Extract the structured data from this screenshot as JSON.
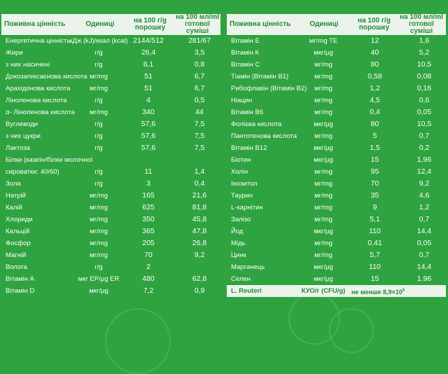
{
  "left": {
    "headers": {
      "name": "Поживна цінність",
      "unit": "Одиниці",
      "per100g": "на 100 г/g\nпорошку",
      "per100ml": "на 100 мл/ml\nготової суміші"
    },
    "rows": [
      {
        "name": "Енергетична цінність",
        "unit": "кДж (kJ)/ккал (kcal)",
        "v1": "2144/512",
        "v2": "281/67"
      },
      {
        "name": "Жири",
        "unit": "г/g",
        "v1": "26,4",
        "v2": "3,5"
      },
      {
        "name": "з них насичені",
        "unit": "г/g",
        "v1": "6,1",
        "v2": "0,8"
      },
      {
        "name": "Докозагексаєнова кислота",
        "unit": "мг/mg",
        "v1": "51",
        "v2": "6,7"
      },
      {
        "name": "Арахідонова кислота",
        "unit": "мг/mg",
        "v1": "51",
        "v2": "6,7"
      },
      {
        "name": "Ліноленова кислота",
        "unit": "г/g",
        "v1": "4",
        "v2": "0,5"
      },
      {
        "name": "α- Ліноленова кислота",
        "unit": "мг/mg",
        "v1": "340",
        "v2": "44"
      },
      {
        "name": "Вуглеводи",
        "unit": "г/g",
        "v1": "57,6",
        "v2": "7,5"
      },
      {
        "name": "з них цукри",
        "unit": "г/g",
        "v1": "57,6",
        "v2": "7,5"
      },
      {
        "name": "Лактоза",
        "unit": "г/g",
        "v1": "57,6",
        "v2": "7,5"
      },
      {
        "name": "Білки (казеїн/білки молочної",
        "unit": "",
        "v1": "",
        "v2": ""
      },
      {
        "name": "сироватки: 40/60)",
        "unit": "г/g",
        "v1": "11",
        "v2": "1,4"
      },
      {
        "name": "Зола",
        "unit": "г/g",
        "v1": "3",
        "v2": "0,4"
      },
      {
        "name": "Натрій",
        "unit": "мг/mg",
        "v1": "165",
        "v2": "21,6"
      },
      {
        "name": "Калій",
        "unit": "мг/mg",
        "v1": "625",
        "v2": "81,8"
      },
      {
        "name": "Хлориди",
        "unit": "мг/mg",
        "v1": "350",
        "v2": "45,8"
      },
      {
        "name": "Кальцій",
        "unit": "мг/mg",
        "v1": "365",
        "v2": "47,8"
      },
      {
        "name": "Фосфор",
        "unit": "мг/mg",
        "v1": "205",
        "v2": "26,8"
      },
      {
        "name": "Магній",
        "unit": "мг/mg",
        "v1": "70",
        "v2": "9,2"
      },
      {
        "name": "Волога",
        "unit": "г/g",
        "v1": "2",
        "v2": ""
      },
      {
        "name": "Вітамін А",
        "unit": "мкг ЕР/µg ER",
        "v1": "480",
        "v2": "62,8"
      },
      {
        "name": "Вітамін D",
        "unit": "мкг/µg",
        "v1": "7,2",
        "v2": "0,9"
      }
    ]
  },
  "right": {
    "headers": {
      "name": "Поживна цінність",
      "unit": "Одиниці",
      "per100g": "на 100 г/g\nпорошку",
      "per100ml": "на 100 мл/ml\nготової суміші"
    },
    "rows": [
      {
        "name": "Вітамін Е",
        "unit": "мг/mg TE",
        "v1": "12",
        "v2": "1,6"
      },
      {
        "name": "Вітамін К",
        "unit": "мкг/µg",
        "v1": "40",
        "v2": "5,2"
      },
      {
        "name": "Вітамін С",
        "unit": "мг/mg",
        "v1": "80",
        "v2": "10,5"
      },
      {
        "name": "Тіамін (Вітамін В1)",
        "unit": "мг/mg",
        "v1": "0,58",
        "v2": "0,08"
      },
      {
        "name": "Рибофлавін (Вітамін В2)",
        "unit": "мг/mg",
        "v1": "1,2",
        "v2": "0,16"
      },
      {
        "name": "Ніацин",
        "unit": "мг/mg",
        "v1": "4,5",
        "v2": "0,6"
      },
      {
        "name": "Вітамін В6",
        "unit": "мг/mg",
        "v1": "0,4",
        "v2": "0,05"
      },
      {
        "name": "Фолієва кислота",
        "unit": "мкг/µg",
        "v1": "80",
        "v2": "10,5"
      },
      {
        "name": "Пантотенова кислота",
        "unit": "мг/mg",
        "v1": "5",
        "v2": "0,7"
      },
      {
        "name": "Вітамін В12",
        "unit": "мкг/µg",
        "v1": "1,5",
        "v2": "0,2"
      },
      {
        "name": "Біотин",
        "unit": "мкг/µg",
        "v1": "15",
        "v2": "1,96"
      },
      {
        "name": "Холін",
        "unit": "мг/mg",
        "v1": "95",
        "v2": "12,4"
      },
      {
        "name": "Інозитол",
        "unit": "мг/mg",
        "v1": "70",
        "v2": "9,2"
      },
      {
        "name": "Таурин",
        "unit": "мг/mg",
        "v1": "35",
        "v2": "4,6"
      },
      {
        "name": "L-карнітин",
        "unit": "мг/mg",
        "v1": "9",
        "v2": "1,2"
      },
      {
        "name": "Залізо",
        "unit": "мг/mg",
        "v1": "5,1",
        "v2": "0,7"
      },
      {
        "name": "Йод",
        "unit": "мкг/µg",
        "v1": "110",
        "v2": "14,4"
      },
      {
        "name": "Мідь",
        "unit": "мг/mg",
        "v1": "0,41",
        "v2": "0,05"
      },
      {
        "name": "Цинк",
        "unit": "мг/mg",
        "v1": "5,7",
        "v2": "0,7"
      },
      {
        "name": "Марганець",
        "unit": "мкг/µg",
        "v1": "110",
        "v2": "14,4"
      },
      {
        "name": "Селен",
        "unit": "мкг/µg",
        "v1": "15",
        "v2": "1,96"
      }
    ],
    "highlight": {
      "name": "L. Reuteri",
      "unit": "КУО/г (CFU/g)",
      "value": "не менше 8,9×10",
      "exp": "5"
    }
  }
}
